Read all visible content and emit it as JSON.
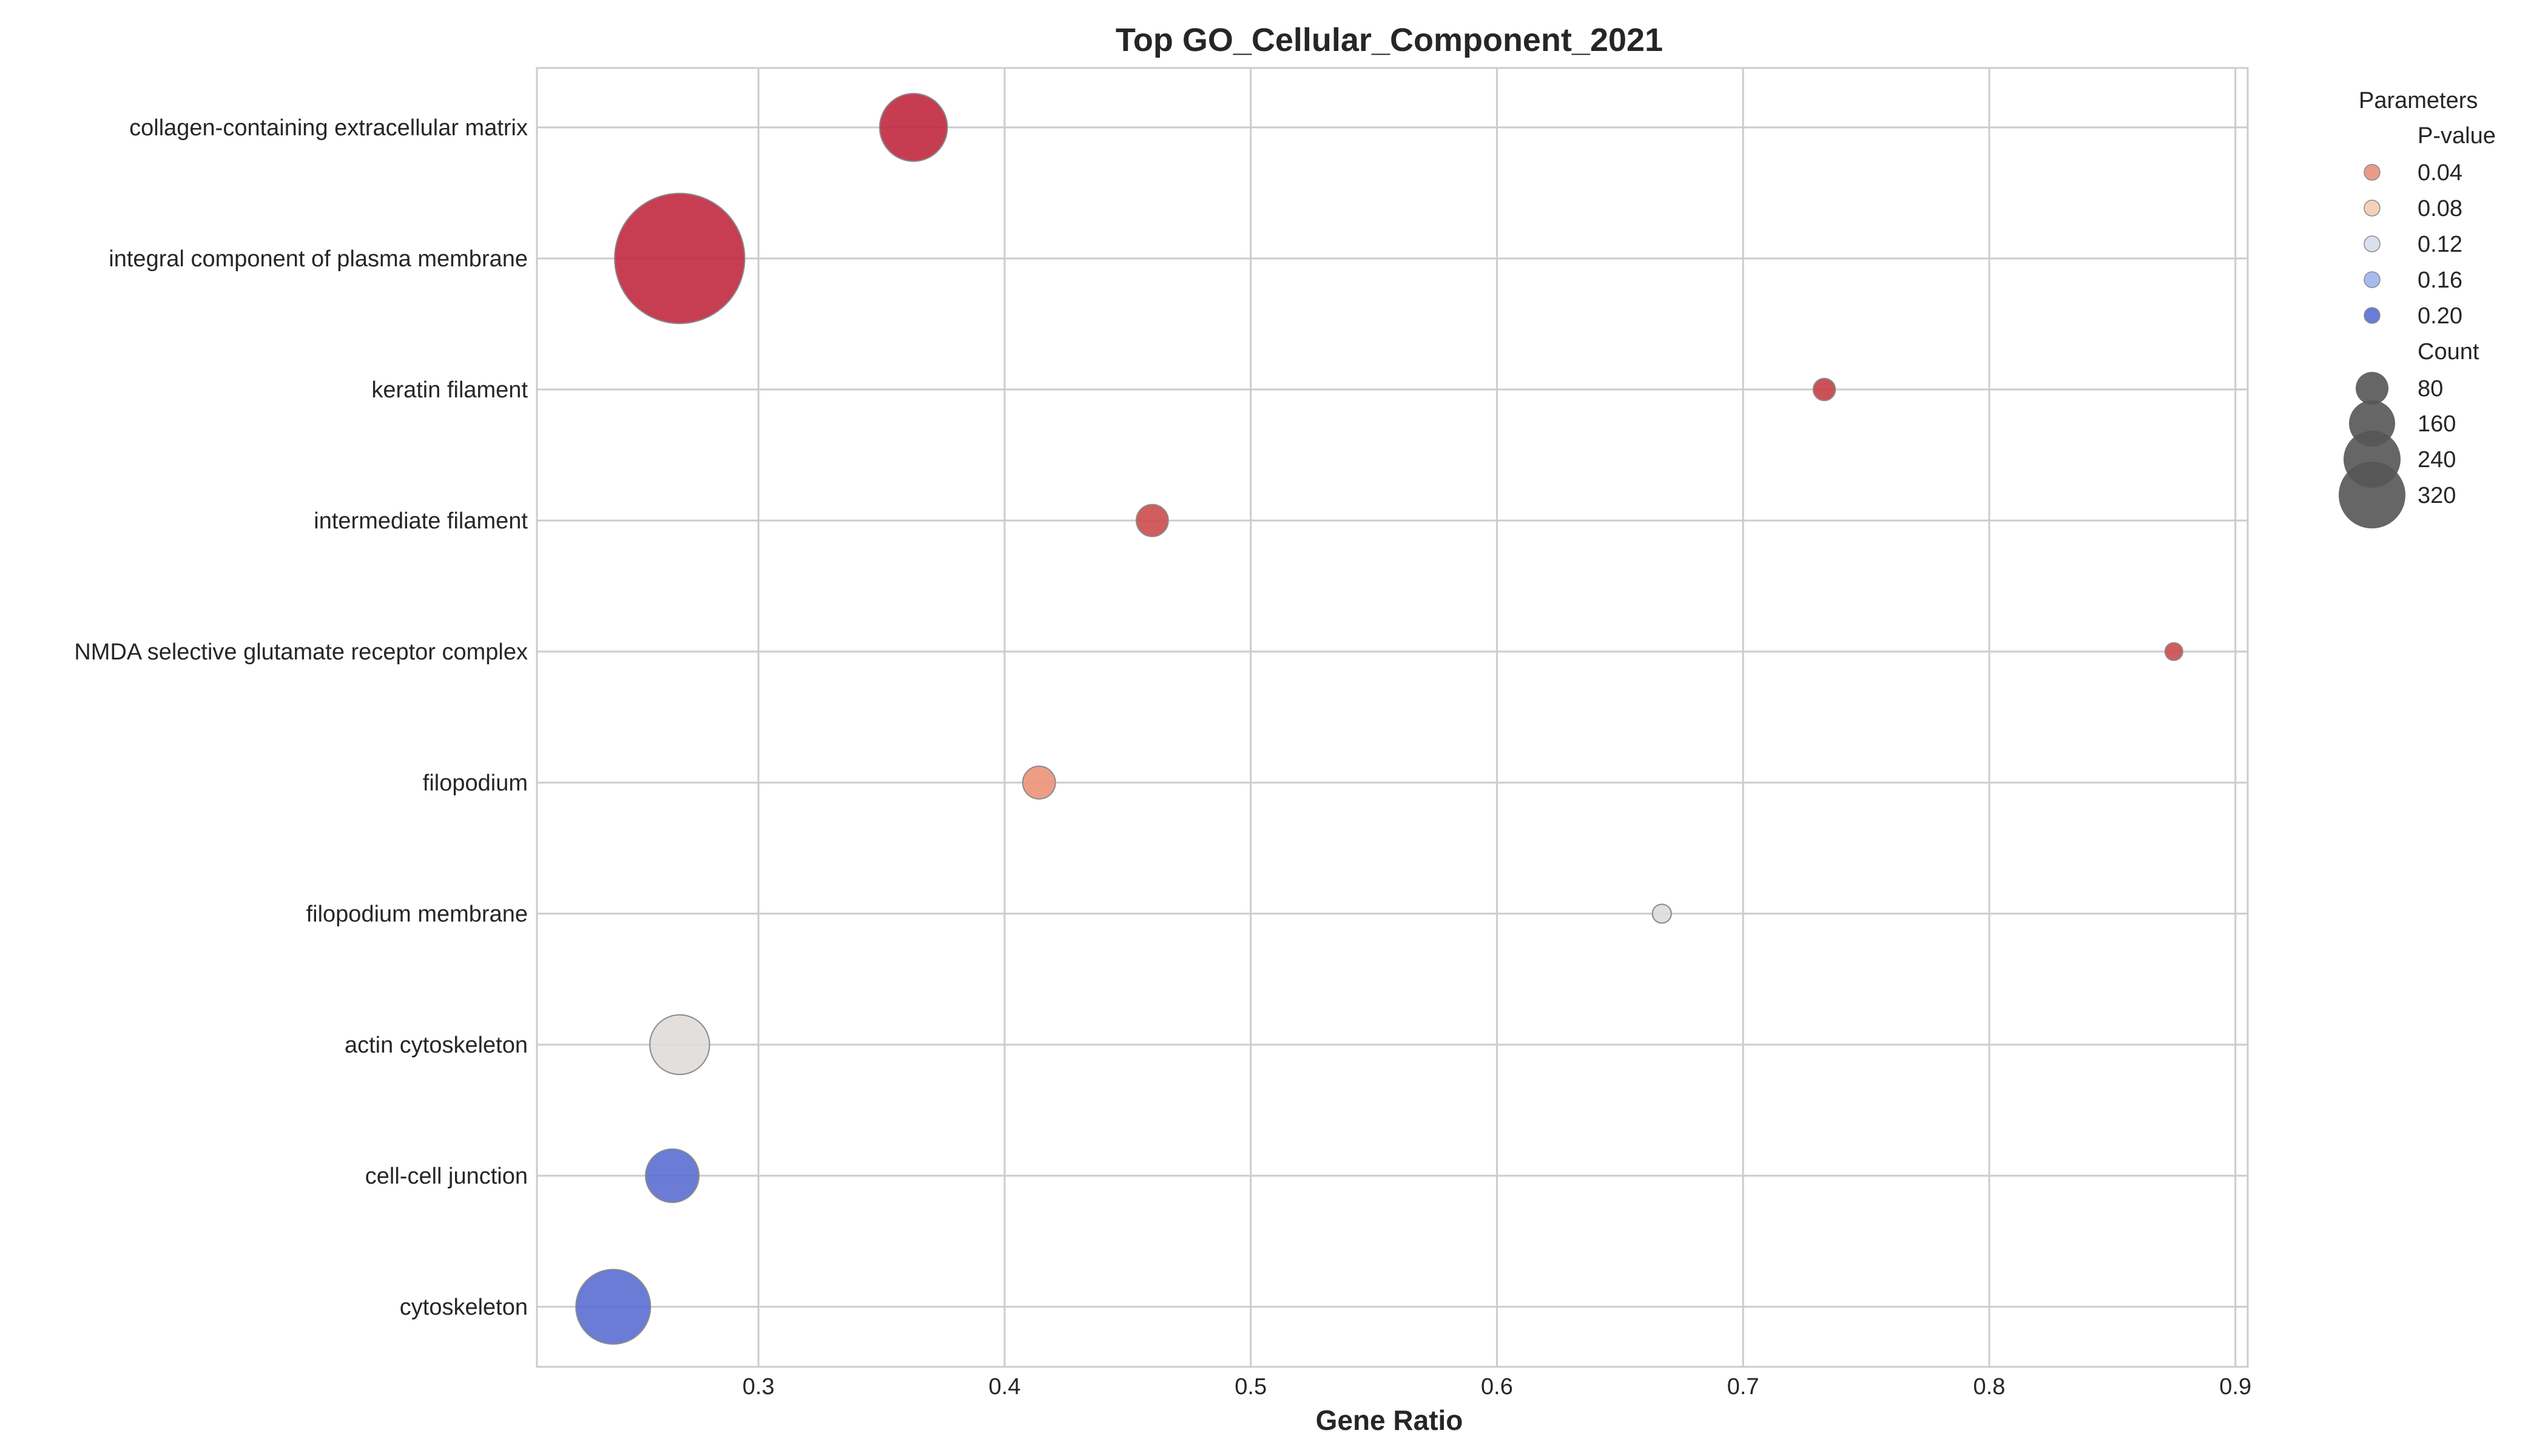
{
  "chart_data": {
    "type": "scatter",
    "title": "Top GO_Cellular_Component_2021",
    "xlabel": "Gene Ratio",
    "ylabel": "",
    "xlim": [
      0.21,
      0.905
    ],
    "xticks": [
      0.3,
      0.4,
      0.5,
      0.6,
      0.7,
      0.8,
      0.9
    ],
    "xtick_labels": [
      "0.3",
      "0.4",
      "0.5",
      "0.6",
      "0.7",
      "0.8",
      "0.9"
    ],
    "grid": true,
    "legend_position": "outside right",
    "color_encoding": "P-value",
    "size_encoding": "Count",
    "categories": [
      "collagen-containing extracellular matrix",
      "integral component of plasma membrane",
      "keratin filament",
      "intermediate filament",
      "NMDA selective glutamate receptor complex",
      "filopodium",
      "filopodium membrane",
      "actin cytoskeleton",
      "cell-cell junction",
      "cytoskeleton"
    ],
    "points": [
      {
        "term": "collagen-containing extracellular matrix",
        "gene_ratio": 0.363,
        "p_value": 0.003,
        "count": 103,
        "color": "#c0283f"
      },
      {
        "term": "integral component of plasma membrane",
        "gene_ratio": 0.268,
        "p_value": 0.004,
        "count": 380,
        "color": "#c1283f"
      },
      {
        "term": "keratin filament",
        "gene_ratio": 0.733,
        "p_value": 0.012,
        "count": 11,
        "color": "#c53e46"
      },
      {
        "term": "intermediate filament",
        "gene_ratio": 0.46,
        "p_value": 0.017,
        "count": 23,
        "color": "#cb4c4c"
      },
      {
        "term": "NMDA selective glutamate receptor complex",
        "gene_ratio": 0.875,
        "p_value": 0.02,
        "count": 7,
        "color": "#cb4c4c"
      },
      {
        "term": "filopodium",
        "gene_ratio": 0.414,
        "p_value": 0.045,
        "count": 24,
        "color": "#ec9278"
      },
      {
        "term": "filopodium membrane",
        "gene_ratio": 0.667,
        "p_value": 0.1,
        "count": 8,
        "color": "#e0dcd9"
      },
      {
        "term": "actin cytoskeleton",
        "gene_ratio": 0.268,
        "p_value": 0.1,
        "count": 80,
        "color": "#e0dcd9"
      },
      {
        "term": "cell-cell junction",
        "gene_ratio": 0.265,
        "p_value": 0.21,
        "count": 64,
        "color": "#5a6ed2"
      },
      {
        "term": "cytoskeleton",
        "gene_ratio": 0.241,
        "p_value": 0.21,
        "count": 125,
        "color": "#5a6ed2"
      }
    ],
    "legend": {
      "header": "Parameters",
      "color_title": "P-value",
      "color_entries": [
        {
          "label": "0.04",
          "color": "#e8907a"
        },
        {
          "label": "0.08",
          "color": "#f2cdb5"
        },
        {
          "label": "0.12",
          "color": "#d5deef"
        },
        {
          "label": "0.16",
          "color": "#9db5ec"
        },
        {
          "label": "0.20",
          "color": "#5a6ed2"
        }
      ],
      "size_title": "Count",
      "size_entries": [
        {
          "label": "80",
          "count": 80
        },
        {
          "label": "160",
          "count": 160
        },
        {
          "label": "240",
          "count": 240
        },
        {
          "label": "320",
          "count": 320
        }
      ]
    }
  }
}
